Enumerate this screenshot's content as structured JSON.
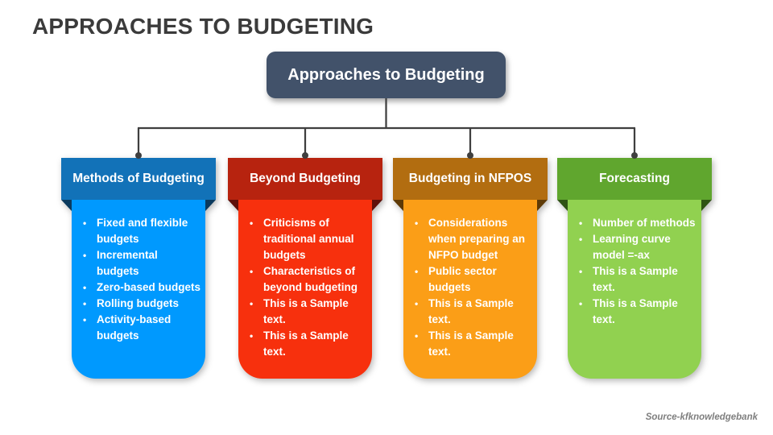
{
  "slide": {
    "title": "APPROACHES TO BUDGETING",
    "source_credit": "Source-kfknowledgebank",
    "background_color": "#FFFFFF",
    "title_color": "#3B3B3B"
  },
  "root_node": {
    "label": "Approaches to Budgeting",
    "bg_color": "#42526A",
    "text_color": "#FFFFFF"
  },
  "connector": {
    "color": "#3F3F3F"
  },
  "cards": [
    {
      "title": "Methods of Budgeting",
      "header_color": "#1272B8",
      "body_color": "#0099FE",
      "fold_color": "#0A3A5E",
      "text_color": "#FFFFFF",
      "items": [
        "Fixed and flexible budgets",
        "Incremental budgets",
        "Zero-based budgets",
        "Rolling budgets",
        "Activity-based budgets"
      ]
    },
    {
      "title": "Beyond Budgeting",
      "header_color": "#B7230F",
      "body_color": "#F7300D",
      "fold_color": "#5F100A",
      "text_color": "#FFFFFF",
      "items": [
        "Criticisms of traditional annual budgets",
        "Characteristics of beyond budgeting",
        "This is a Sample text.",
        "This is a Sample text."
      ]
    },
    {
      "title": "Budgeting in NFPOS",
      "header_color": "#B26D10",
      "body_color": "#FB9E17",
      "fold_color": "#5E3A06",
      "text_color": "#FFFFFF",
      "items": [
        "Considerations when preparing an NFPO budget",
        "Public sector budgets",
        "This is a Sample text.",
        "This is a Sample text."
      ]
    },
    {
      "title": "Forecasting",
      "header_color": "#60A62E",
      "body_color": "#91D150",
      "fold_color": "#2F5414",
      "text_color": "#FFFFFF",
      "items": [
        "Number of methods",
        "Learning curve model =-ax",
        "This is a Sample text.",
        "This is a Sample text."
      ]
    }
  ]
}
